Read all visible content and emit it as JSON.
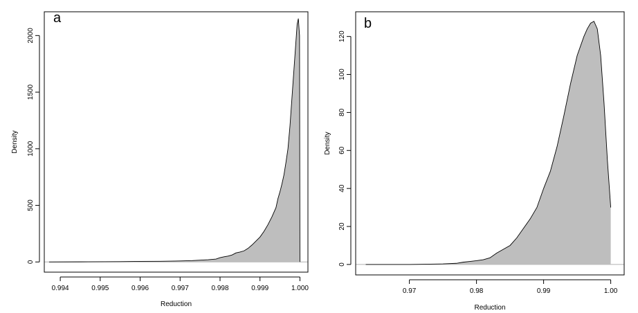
{
  "chart_data": [
    {
      "type": "area",
      "panel_label": "a",
      "xlabel": "Reduction",
      "ylabel": "Density",
      "xlim": [
        0.9936,
        1.0002
      ],
      "ylim": [
        -90,
        2210
      ],
      "x_ticks": [
        "0.994",
        "0.995",
        "0.996",
        "0.997",
        "0.998",
        "0.999",
        "1.000"
      ],
      "y_ticks": [
        "0",
        "500",
        "1000",
        "1500",
        "2000"
      ],
      "x_tick_values": [
        0.994,
        0.995,
        0.996,
        0.997,
        0.998,
        0.999,
        1.0
      ],
      "y_tick_values": [
        0,
        500,
        1000,
        1500,
        2000
      ],
      "fill_color": "#bebebe",
      "line_color": "#000000",
      "baseline": true,
      "series": [
        {
          "x": [
            0.99372,
            0.9945,
            0.9955,
            0.996,
            0.9965,
            0.997,
            0.9973,
            0.9975,
            0.9977,
            0.9979,
            0.998,
            0.9981,
            0.9982,
            0.9983,
            0.9984,
            0.9985,
            0.9986,
            0.9987,
            0.9988,
            0.9989,
            0.999,
            0.9991,
            0.9992,
            0.9993,
            0.9994,
            0.99945,
            0.9995,
            0.99955,
            0.9996,
            0.99965,
            0.9997,
            0.99975,
            0.9998,
            0.99985,
            0.9999,
            0.99993,
            0.99996,
            0.99999,
            1.0
          ],
          "y": [
            0,
            1,
            3,
            5,
            6,
            9,
            12,
            16,
            20,
            26,
            38,
            46,
            52,
            62,
            80,
            88,
            98,
            120,
            150,
            185,
            220,
            270,
            330,
            400,
            480,
            560,
            620,
            690,
            770,
            880,
            1000,
            1200,
            1450,
            1700,
            1950,
            2100,
            2150,
            2000,
            0
          ]
        }
      ]
    },
    {
      "type": "area",
      "panel_label": "b",
      "xlabel": "Reduction",
      "ylabel": "Density",
      "xlim": [
        0.962,
        1.002
      ],
      "ylim": [
        -5.5,
        133
      ],
      "x_ticks": [
        "0.97",
        "0.98",
        "0.99",
        "1.00"
      ],
      "y_ticks": [
        "0",
        "20",
        "40",
        "60",
        "80",
        "100",
        "120"
      ],
      "x_tick_values": [
        0.97,
        0.98,
        0.99,
        1.0
      ],
      "y_tick_values": [
        0,
        20,
        40,
        60,
        80,
        100,
        120
      ],
      "fill_color": "#bebebe",
      "line_color": "#000000",
      "baseline": true,
      "series": [
        {
          "x": [
            0.9635,
            0.97,
            0.975,
            0.977,
            0.978,
            0.979,
            0.98,
            0.981,
            0.982,
            0.983,
            0.984,
            0.985,
            0.986,
            0.987,
            0.988,
            0.989,
            0.99,
            0.991,
            0.992,
            0.993,
            0.994,
            0.995,
            0.996,
            0.9965,
            0.997,
            0.9975,
            0.998,
            0.9985,
            0.999,
            0.9995,
            1.0
          ],
          "y": [
            0,
            0,
            0.3,
            0.6,
            1.2,
            1.6,
            2.0,
            2.5,
            3.5,
            6.0,
            8.0,
            10.0,
            14.0,
            19.0,
            24.0,
            30.0,
            40.0,
            49.0,
            62.0,
            78.0,
            95.0,
            110.0,
            120.0,
            124.0,
            127.0,
            128.0,
            124.0,
            110.0,
            85.0,
            55.0,
            30.0
          ]
        }
      ]
    }
  ]
}
